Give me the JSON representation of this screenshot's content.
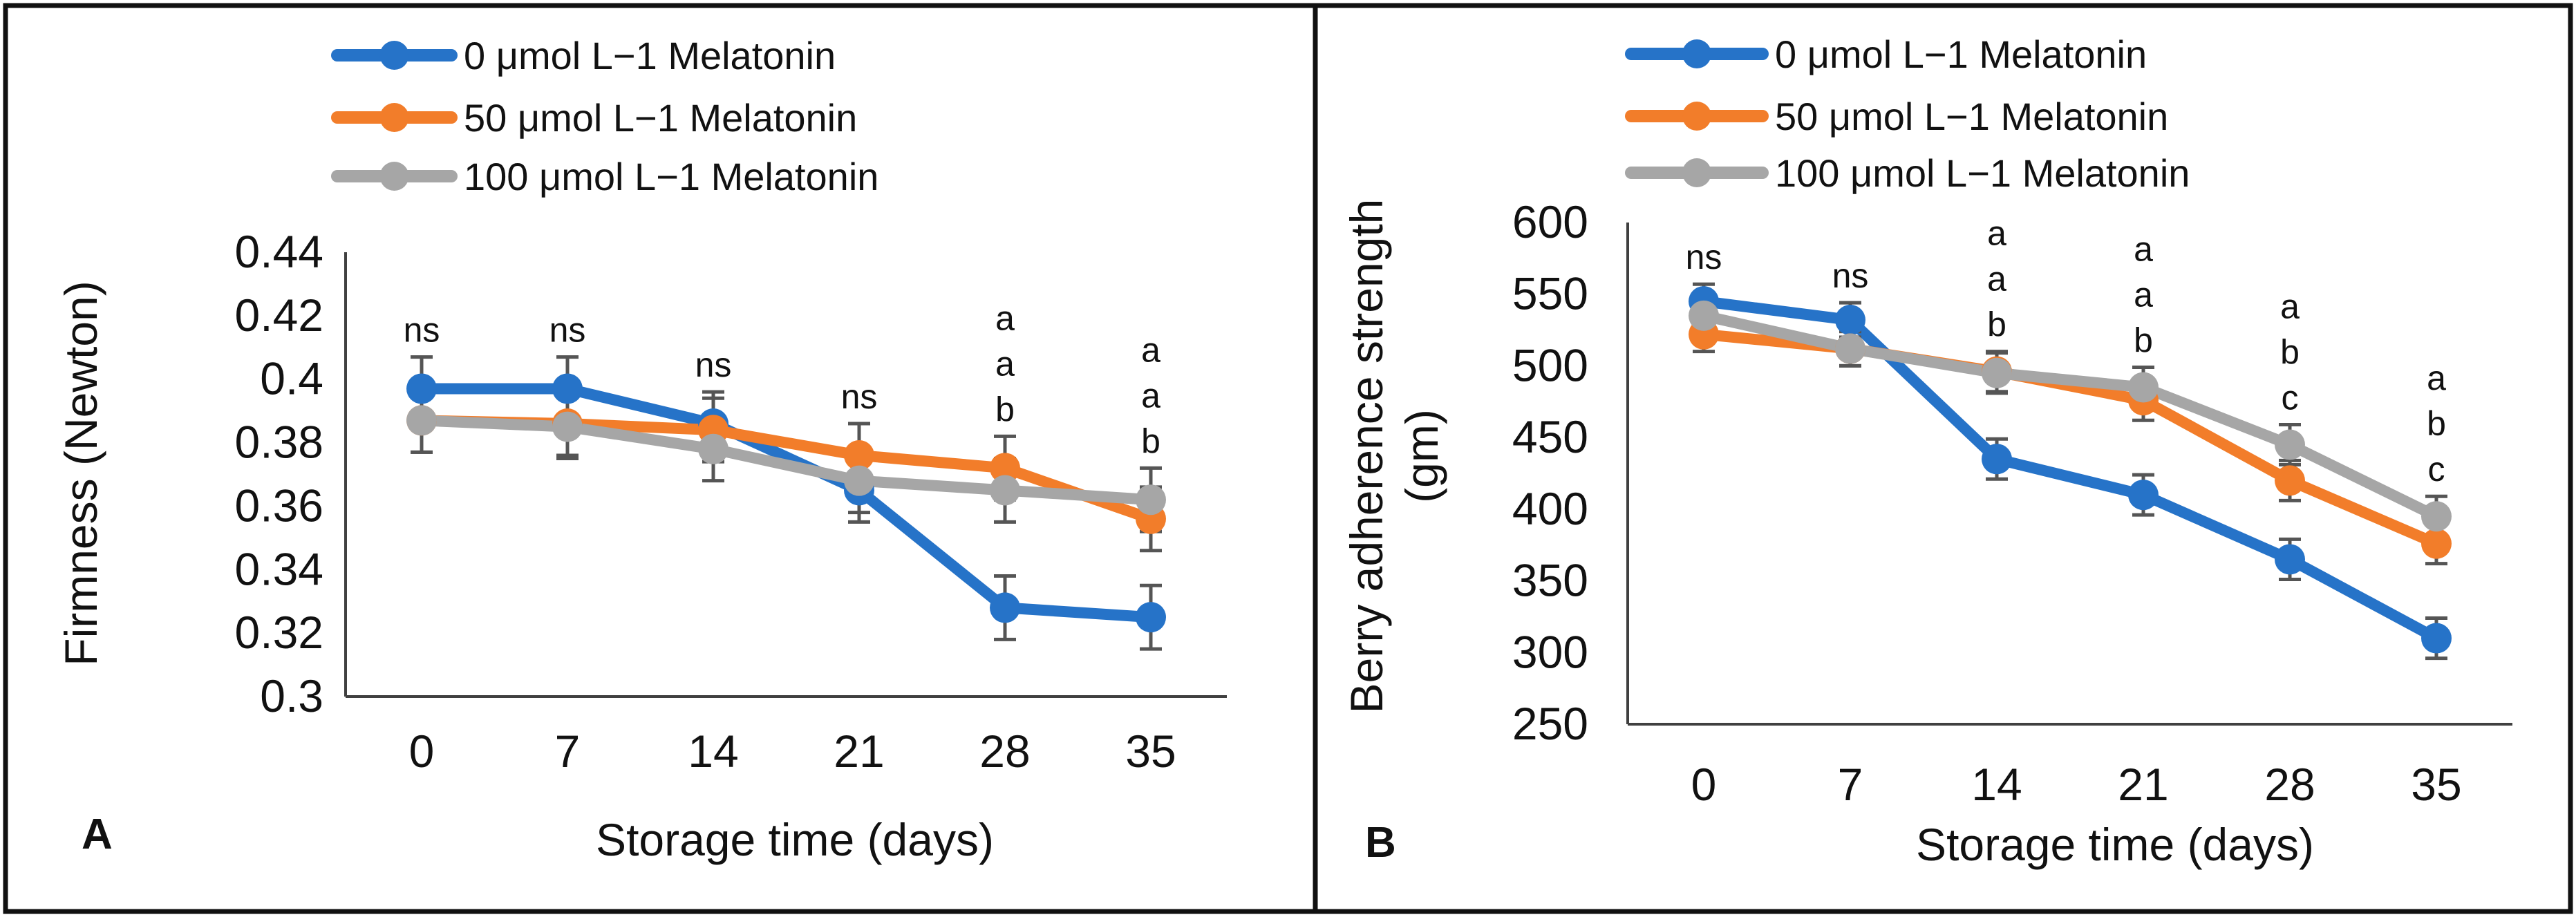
{
  "chart_data": [
    {
      "type": "line",
      "panel_label": "A",
      "title": "",
      "xlabel": "Storage time (days)",
      "ylabel": "Firmness (Newton)",
      "categories": [
        "0",
        "7",
        "14",
        "21",
        "28",
        "35"
      ],
      "ylim": [
        0.3,
        0.44
      ],
      "yticks": [
        "0.3",
        "0.32",
        "0.34",
        "0.36",
        "0.38",
        "0.4",
        "0.42",
        "0.44"
      ],
      "grid": false,
      "legend_position": "top-left",
      "series": [
        {
          "name": "0 μmol L−1 Melatonin",
          "color": "#2673c8",
          "values": [
            0.397,
            0.397,
            0.386,
            0.365,
            0.328,
            0.325
          ],
          "errors": [
            0.01,
            0.01,
            0.01,
            0.01,
            0.01,
            0.01
          ]
        },
        {
          "name": "50 μmol L−1 Melatonin",
          "color": "#f27d2a",
          "values": [
            0.387,
            0.386,
            0.384,
            0.376,
            0.372,
            0.356
          ],
          "errors": [
            0.01,
            0.01,
            0.01,
            0.01,
            0.01,
            0.01
          ]
        },
        {
          "name": "100 μmol L−1 Melatonin",
          "color": "#a6a6a6",
          "values": [
            0.387,
            0.385,
            0.378,
            0.368,
            0.365,
            0.362
          ],
          "errors": [
            0.01,
            0.01,
            0.01,
            0.01,
            0.01,
            0.01
          ]
        }
      ],
      "annotations": [
        {
          "category": "0",
          "labels": [
            "ns"
          ]
        },
        {
          "category": "7",
          "labels": [
            "ns"
          ]
        },
        {
          "category": "14",
          "labels": [
            "ns"
          ]
        },
        {
          "category": "21",
          "labels": [
            "ns"
          ]
        },
        {
          "category": "28",
          "labels": [
            "a",
            "a",
            "b"
          ]
        },
        {
          "category": "35",
          "labels": [
            "a",
            "a",
            "b"
          ]
        }
      ]
    },
    {
      "type": "line",
      "panel_label": "B",
      "title": "",
      "xlabel": "Storage time (days)",
      "ylabel": "Berry adherence strength (gm)",
      "ylabel_lines": [
        "Berry adherence strength",
        "(gm)"
      ],
      "categories": [
        "0",
        "7",
        "14",
        "21",
        "28",
        "35"
      ],
      "ylim": [
        250,
        600
      ],
      "yticks": [
        "250",
        "300",
        "350",
        "400",
        "450",
        "500",
        "550",
        "600"
      ],
      "grid": false,
      "legend_position": "top-left",
      "series": [
        {
          "name": "0 μmol L−1 Melatonin",
          "color": "#2673c8",
          "values": [
            545,
            532,
            435,
            410,
            365,
            310
          ],
          "errors": [
            12,
            12,
            14,
            14,
            14,
            14
          ]
        },
        {
          "name": "50 μmol L−1 Melatonin",
          "color": "#f27d2a",
          "values": [
            522,
            512,
            496,
            476,
            420,
            376
          ],
          "errors": [
            12,
            12,
            14,
            14,
            14,
            14
          ]
        },
        {
          "name": "100 μmol L−1 Melatonin",
          "color": "#a6a6a6",
          "values": [
            535,
            512,
            495,
            485,
            445,
            395
          ],
          "errors": [
            12,
            12,
            14,
            14,
            14,
            14
          ]
        }
      ],
      "annotations": [
        {
          "category": "0",
          "labels": [
            "ns"
          ]
        },
        {
          "category": "7",
          "labels": [
            "ns"
          ]
        },
        {
          "category": "14",
          "labels": [
            "a",
            "a",
            "b"
          ]
        },
        {
          "category": "21",
          "labels": [
            "a",
            "a",
            "b"
          ]
        },
        {
          "category": "28",
          "labels": [
            "a",
            "b",
            "c"
          ]
        },
        {
          "category": "35",
          "labels": [
            "a",
            "b",
            "c"
          ]
        }
      ]
    }
  ]
}
